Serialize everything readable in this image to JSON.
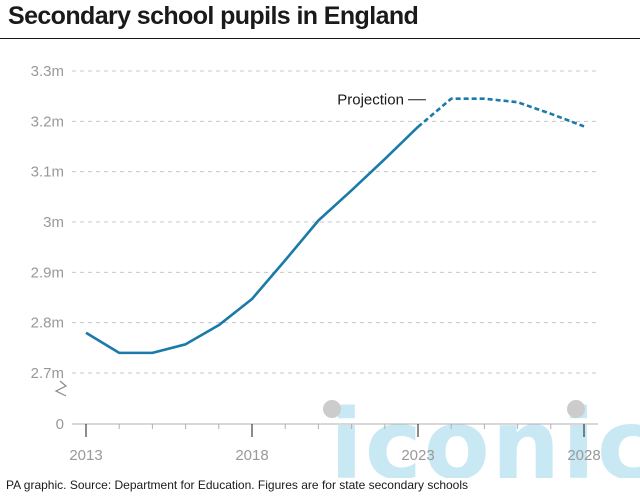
{
  "header": {
    "title": "Secondary school pupils in England"
  },
  "footer": {
    "source": "PA graphic. Source: Department for Education. Figures are for state secondary schools"
  },
  "watermark": {
    "text": "iconic",
    "color": "#bfe6f3"
  },
  "chart_data": {
    "type": "line",
    "title": "Secondary school pupils in England",
    "xlabel": "",
    "ylabel": "",
    "xlim": [
      2013,
      2028
    ],
    "ylim": [
      2.7,
      3.3
    ],
    "y_axis_break": true,
    "y_ticks": [
      {
        "value": 3.3,
        "label": "3.3m"
      },
      {
        "value": 3.2,
        "label": "3.2m"
      },
      {
        "value": 3.1,
        "label": "3.1m"
      },
      {
        "value": 3.0,
        "label": "3m"
      },
      {
        "value": 2.9,
        "label": "2.9m"
      },
      {
        "value": 2.8,
        "label": "2.8m"
      },
      {
        "value": 2.7,
        "label": "2.7m"
      },
      {
        "value": 0,
        "label": "0"
      }
    ],
    "x_ticks": [
      2013,
      2018,
      2023,
      2028
    ],
    "grid": true,
    "line_color": "#1a7aa8",
    "series": [
      {
        "style": "solid",
        "points": [
          {
            "x": 2013,
            "y": 2.78
          },
          {
            "x": 2014,
            "y": 2.74
          },
          {
            "x": 2015,
            "y": 2.74
          },
          {
            "x": 2016,
            "y": 2.757
          },
          {
            "x": 2017,
            "y": 2.795
          },
          {
            "x": 2018,
            "y": 2.847
          },
          {
            "x": 2019,
            "y": 2.924
          },
          {
            "x": 2020,
            "y": 3.003
          },
          {
            "x": 2021,
            "y": 3.063
          },
          {
            "x": 2022,
            "y": 3.125
          },
          {
            "x": 2023,
            "y": 3.189
          }
        ]
      },
      {
        "style": "dashed",
        "points": [
          {
            "x": 2023,
            "y": 3.189
          },
          {
            "x": 2024,
            "y": 3.245
          },
          {
            "x": 2025,
            "y": 3.245
          },
          {
            "x": 2026,
            "y": 3.238
          },
          {
            "x": 2027,
            "y": 3.215
          },
          {
            "x": 2028,
            "y": 3.19
          }
        ]
      }
    ],
    "annotations": [
      {
        "text": "Projection",
        "x": 2023.3,
        "y": 3.243
      }
    ]
  }
}
